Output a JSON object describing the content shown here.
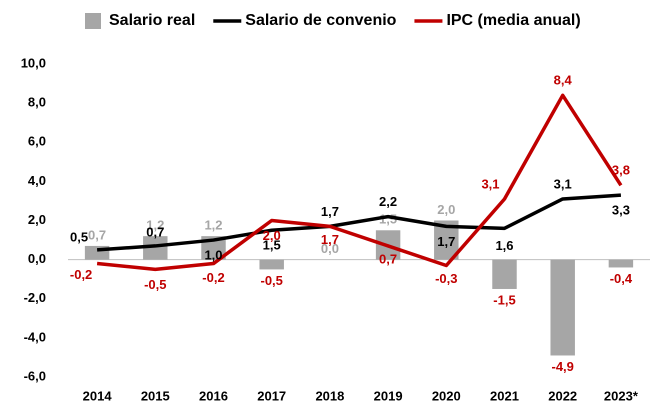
{
  "chart_data": {
    "type": "bar_line",
    "categories": [
      "2014",
      "2015",
      "2016",
      "2017",
      "2018",
      "2019",
      "2020",
      "2021",
      "2022",
      "2023*"
    ],
    "series": [
      {
        "name": "Salario real",
        "type": "bar",
        "color": "#a6a6a6",
        "values": [
          0.7,
          1.2,
          1.2,
          -0.5,
          0.0,
          1.5,
          2.0,
          -1.5,
          -4.9,
          -0.4
        ],
        "value_labels": [
          "0,7",
          "1,2",
          "1,2",
          "-0,5",
          "0,0",
          "1,5",
          "2,0",
          "-1,5",
          "-4,9",
          "-0,4"
        ]
      },
      {
        "name": "Salario de convenio",
        "type": "line",
        "color": "#000000",
        "values": [
          0.5,
          0.7,
          1.0,
          1.5,
          1.7,
          2.2,
          1.7,
          1.6,
          3.1,
          3.3
        ],
        "value_labels": [
          "0,5",
          "0,7",
          "1,0",
          "1,5",
          "1,7",
          "2,2",
          "1,7",
          "1,6",
          "3,1",
          "3,3"
        ]
      },
      {
        "name": "IPC (media anual)",
        "type": "line",
        "color": "#c00000",
        "values": [
          -0.2,
          -0.5,
          -0.2,
          2.0,
          1.7,
          0.7,
          -0.3,
          3.1,
          8.4,
          3.8
        ],
        "value_labels": [
          "-0,2",
          "-0,5",
          "-0,2",
          "2,0",
          "1,7",
          "0,7",
          "-0,3",
          "3,1",
          "8,4",
          "3,8"
        ]
      }
    ],
    "ylim": [
      -6,
      10
    ],
    "yticks": [
      {
        "value": -6,
        "label": "-6,0"
      },
      {
        "value": -4,
        "label": "-4,0"
      },
      {
        "value": -2,
        "label": "-2,0"
      },
      {
        "value": 0,
        "label": "0,0"
      },
      {
        "value": 2,
        "label": "2,0"
      },
      {
        "value": 4,
        "label": "4,0"
      },
      {
        "value": 6,
        "label": "6,0"
      },
      {
        "value": 8,
        "label": "8,0"
      },
      {
        "value": 10,
        "label": "10,0"
      }
    ],
    "grid": false,
    "legend": "top"
  }
}
